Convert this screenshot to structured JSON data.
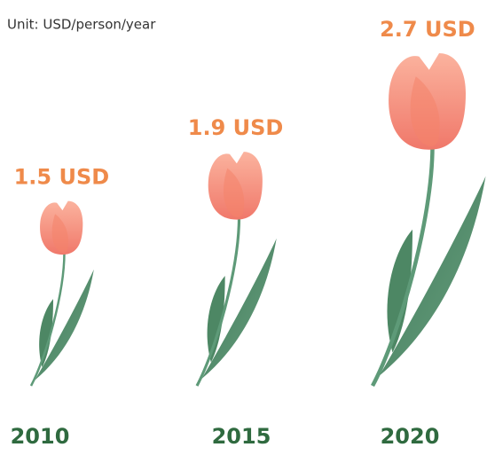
{
  "chart_data": {
    "type": "pictorial",
    "subtitle": "Unit:  USD/person/year",
    "categories": [
      "2010",
      "2015",
      "2020"
    ],
    "values": [
      1.5,
      1.9,
      2.7
    ],
    "value_labels": [
      "1.5 USD",
      "1.9 USD",
      "2.7 USD"
    ],
    "color": "#f4836a"
  }
}
